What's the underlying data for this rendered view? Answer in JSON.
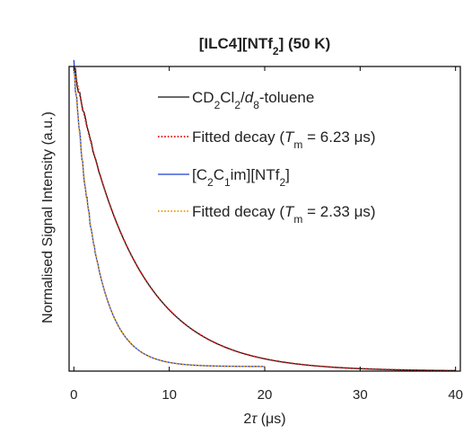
{
  "chart_data": {
    "type": "line",
    "title": {
      "segments": [
        {
          "text": "[ILC4][NTf",
          "sub": false
        },
        {
          "text": "2",
          "sub": true
        },
        {
          "text": "] (50 K)",
          "sub": false
        }
      ]
    },
    "xlabel": {
      "segments": [
        {
          "text": "2",
          "sub": false,
          "italic": false
        },
        {
          "text": "τ",
          "sub": false,
          "italic": true
        },
        {
          "text": " (μs)",
          "sub": false,
          "italic": false
        }
      ]
    },
    "ylabel": "Normalised Signal Intensity (a.u.)",
    "xlim": [
      -0.5,
      40.5
    ],
    "ylim": [
      0,
      1
    ],
    "xticks": [
      "0",
      "10",
      "20",
      "30",
      "40"
    ],
    "xtick_values": [
      0,
      10,
      20,
      30,
      40
    ],
    "yticks_shown": false,
    "grid": false,
    "legend_position": "upper-right",
    "series": [
      {
        "name": [
          {
            "text": "CD",
            "sub": false,
            "italic": false
          },
          {
            "text": "2",
            "sub": true,
            "italic": false
          },
          {
            "text": "Cl",
            "sub": false,
            "italic": false
          },
          {
            "text": "2",
            "sub": true,
            "italic": false
          },
          {
            "text": "/",
            "sub": false,
            "italic": false
          },
          {
            "text": "d",
            "sub": false,
            "italic": true
          },
          {
            "text": "8",
            "sub": true,
            "italic": false
          },
          {
            "text": "-toluene",
            "sub": false,
            "italic": false
          }
        ],
        "color": "#111111",
        "style": "solid",
        "noisy": true,
        "tm": 6.23,
        "x_range": [
          0,
          40
        ],
        "amplitude": 1.0,
        "offset": 0.0
      },
      {
        "name": [
          {
            "text": "Fitted decay (",
            "sub": false,
            "italic": false
          },
          {
            "text": "T",
            "sub": false,
            "italic": true
          },
          {
            "text": "m",
            "sub": true,
            "italic": false
          },
          {
            "text": " = 6.23 μs)",
            "sub": false,
            "italic": false
          }
        ],
        "color": "#e8221c",
        "style": "dotted",
        "noisy": false,
        "tm": 6.23,
        "x_range": [
          0,
          40
        ],
        "amplitude": 1.0,
        "offset": 0.0
      },
      {
        "name": [
          {
            "text": "[C",
            "sub": false,
            "italic": false
          },
          {
            "text": "2",
            "sub": true,
            "italic": false
          },
          {
            "text": "C",
            "sub": false,
            "italic": false
          },
          {
            "text": "1",
            "sub": true,
            "italic": false
          },
          {
            "text": "im][NTf",
            "sub": false,
            "italic": false
          },
          {
            "text": "2",
            "sub": true,
            "italic": false
          },
          {
            "text": "]",
            "sub": false,
            "italic": false
          }
        ],
        "color": "#1f3fd1",
        "style": "solid",
        "noisy": true,
        "tm": 2.33,
        "x_range": [
          0,
          20
        ],
        "amplitude": 0.985,
        "offset": 0.015
      },
      {
        "name": [
          {
            "text": "Fitted decay (",
            "sub": false,
            "italic": false
          },
          {
            "text": "T",
            "sub": false,
            "italic": true
          },
          {
            "text": "m",
            "sub": true,
            "italic": false
          },
          {
            "text": " = 2.33 μs)",
            "sub": false,
            "italic": false
          }
        ],
        "color": "#f0a81c",
        "style": "dotted",
        "noisy": false,
        "tm": 2.33,
        "x_range": [
          0,
          20
        ],
        "amplitude": 0.985,
        "offset": 0.015
      }
    ]
  }
}
